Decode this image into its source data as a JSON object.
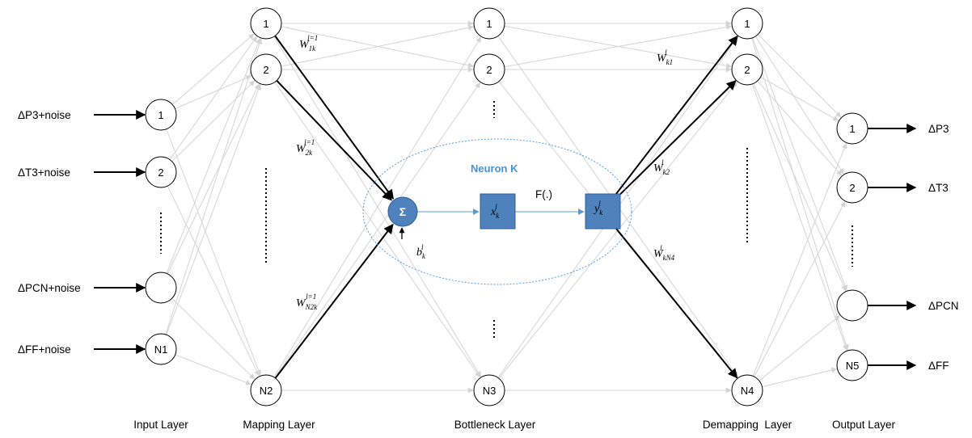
{
  "inputs": [
    {
      "label": "ΔP3+noise",
      "node": "1"
    },
    {
      "label": "ΔT3+noise",
      "node": "2"
    },
    {
      "label": "ΔPCN+noise",
      "node": ""
    },
    {
      "label": "ΔFF+noise",
      "node": "N1"
    }
  ],
  "mapping_nodes": [
    "1",
    "2",
    "N2"
  ],
  "bottleneck_nodes": [
    "1",
    "2",
    "N3"
  ],
  "demapping_nodes": [
    "1",
    "2",
    "N4"
  ],
  "outputs": [
    {
      "node": "1",
      "label": "ΔP3"
    },
    {
      "node": "2",
      "label": "ΔT3"
    },
    {
      "node": "",
      "label": "ΔPCN"
    },
    {
      "node": "N5",
      "label": "ΔFF"
    }
  ],
  "layers": {
    "input": "Input Layer",
    "mapping": "Mapping Layer",
    "bottleneck": "Bottleneck Layer",
    "demapping": "Demapping  Layer",
    "output": "Output Layer"
  },
  "neuron": {
    "title": "Neuron K",
    "sum_symbol": "Σ",
    "activation": "F(.)",
    "x": {
      "base": "x",
      "sub": "k",
      "sup": "l"
    },
    "y": {
      "base": "y",
      "sub": "k",
      "sup": "l"
    },
    "bias": {
      "base": "b",
      "sub": "k",
      "sup": "l"
    }
  },
  "weights": {
    "w1": {
      "base": "W",
      "sub": "1k",
      "sup": "l=1"
    },
    "w2": {
      "base": "W",
      "sub": "2k",
      "sup": "l=1"
    },
    "wn2": {
      "base": "W",
      "sub": "N2k",
      "sup": "l=1"
    },
    "wk1": {
      "base": "W",
      "sub": "k1",
      "sup": "l"
    },
    "wk2": {
      "base": "W",
      "sub": "k2",
      "sup": "l"
    },
    "wkn4": {
      "base": "W",
      "sub": "kN4",
      "sup": "l"
    }
  },
  "colors": {
    "grey_line": "#d4d4d4",
    "black_line": "#000000",
    "neuron_blue": "#4f81bd",
    "ellipse_blue": "#5b9bd5",
    "flow_blue": "#5b9bd5",
    "label_blue": "#4a90d9"
  }
}
